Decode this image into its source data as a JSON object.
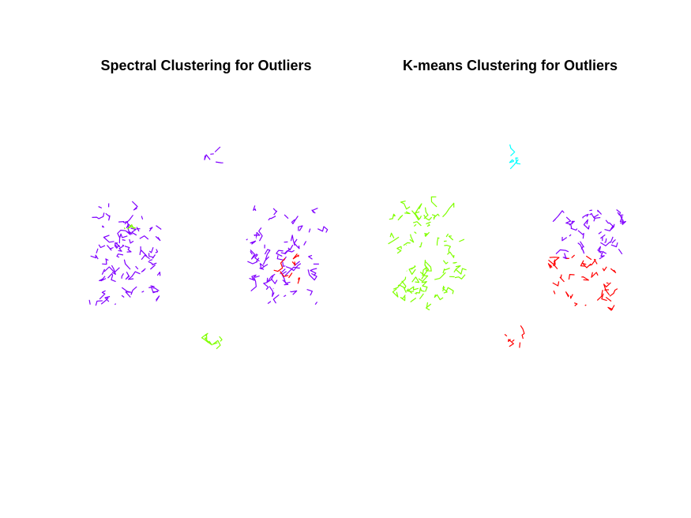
{
  "colors": {
    "purple": "#8000ff",
    "green": "#80ff00",
    "red": "#ff0000",
    "cyan": "#00ffff"
  },
  "chart_data": [
    {
      "type": "scatter",
      "title": "Spectral Clustering for Outliers",
      "axes_visible": false,
      "xlim": [
        0,
        100
      ],
      "ylim": [
        0,
        100
      ],
      "clusters": [
        {
          "color": "purple",
          "regions": [
            {
              "x": [
                0,
                30
              ],
              "y": [
                24,
                64
              ],
              "count": 70,
              "seed": 11
            },
            {
              "x": [
                68,
                100
              ],
              "y": [
                24,
                64
              ],
              "count": 60,
              "seed": 12
            },
            {
              "x": [
                51,
                57
              ],
              "y": [
                80,
                86
              ],
              "count": 4,
              "seed": 13
            }
          ]
        },
        {
          "color": "green",
          "regions": [
            {
              "x": [
                14,
                20
              ],
              "y": [
                54,
                59
              ],
              "count": 2,
              "seed": 21
            },
            {
              "x": [
                49,
                57
              ],
              "y": [
                9,
                15
              ],
              "count": 5,
              "seed": 22
            }
          ]
        },
        {
          "color": "red",
          "regions": [
            {
              "x": [
                82,
                100
              ],
              "y": [
                34,
                48
              ],
              "count": 6,
              "seed": 31
            }
          ]
        }
      ]
    },
    {
      "type": "scatter",
      "title": "K-means Clustering for Outliers",
      "axes_visible": false,
      "xlim": [
        0,
        100
      ],
      "ylim": [
        0,
        100
      ],
      "clusters": [
        {
          "color": "green",
          "regions": [
            {
              "x": [
                0,
                30
              ],
              "y": [
                24,
                64
              ],
              "count": 70,
              "seed": 41
            }
          ]
        },
        {
          "color": "purple",
          "regions": [
            {
              "x": [
                68,
                100
              ],
              "y": [
                44,
                64
              ],
              "count": 35,
              "seed": 42
            }
          ]
        },
        {
          "color": "red",
          "regions": [
            {
              "x": [
                68,
                100
              ],
              "y": [
                24,
                44
              ],
              "count": 30,
              "seed": 43
            },
            {
              "x": [
                49,
                57
              ],
              "y": [
                9,
                15
              ],
              "count": 5,
              "seed": 44
            }
          ]
        },
        {
          "color": "cyan",
          "regions": [
            {
              "x": [
                51,
                57
              ],
              "y": [
                80,
                86
              ],
              "count": 4,
              "seed": 45
            }
          ]
        }
      ]
    }
  ]
}
